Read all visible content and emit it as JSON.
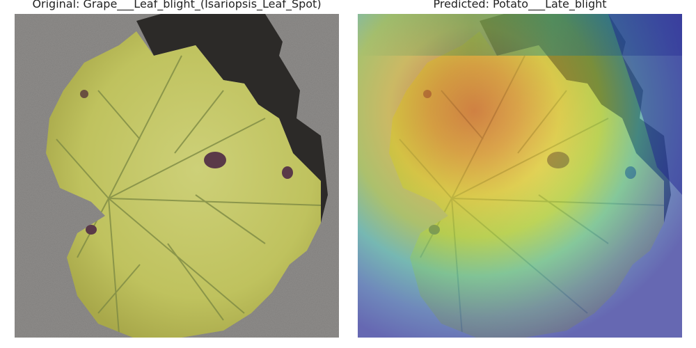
{
  "panels": {
    "left": {
      "title": "Original: Grape___Leaf_blight_(Isariopsis_Leaf_Spot)",
      "image": "grape-leaf-photo"
    },
    "right": {
      "title": "Predicted: Potato___Late_blight",
      "image": "grape-leaf-gradcam-heatmap-overlay"
    }
  },
  "colors": {
    "background": "#9c9a98",
    "leaf": "#c4c86a",
    "heat_hot": "#e0502a",
    "heat_cold": "#3a40c8"
  }
}
